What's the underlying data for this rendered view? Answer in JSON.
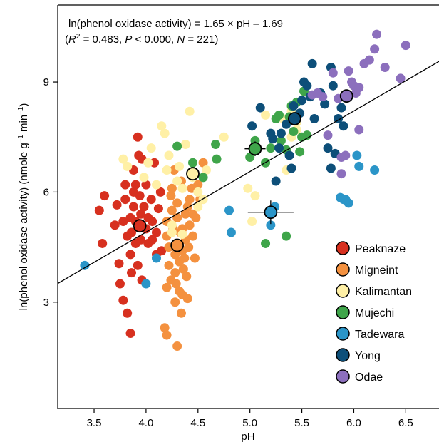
{
  "chart_data": {
    "type": "scatter",
    "equation_line1": "ln(phenol oxidase activity) = 1.65 × pH – 1.69",
    "equation_line2": {
      "open": "(",
      "r_symbol": "R",
      "r_sup": "2",
      "r_value": " = 0.483, ",
      "p_symbol": "P",
      "p_value": " < 0.000, ",
      "n_symbol": "N",
      "n_value": " = 221)"
    },
    "xlabel": "pH",
    "ylabel": {
      "main": "ln(phenol oxidase activity) (nmole  g",
      "sup1": "–1",
      "mid": " min",
      "sup2": "–1",
      "end": ")"
    },
    "xlim": [
      3.15,
      6.82
    ],
    "ylim": [
      0.1,
      11.1
    ],
    "xticks": [
      "3.5",
      "4.0",
      "4.5",
      "5.0",
      "5.5",
      "6.0",
      "6.5"
    ],
    "yticks": [
      "3",
      "6",
      "9"
    ],
    "regression": {
      "slope": 1.65,
      "intercept": -1.69
    },
    "legend_position": "bottom-right",
    "series": [
      {
        "name": "Peaknaze",
        "color": "#d7301f",
        "points": [
          [
            3.55,
            5.5
          ],
          [
            3.6,
            5.9
          ],
          [
            3.7,
            5.1
          ],
          [
            3.72,
            5.65
          ],
          [
            3.75,
            3.5
          ],
          [
            3.78,
            3.05
          ],
          [
            3.8,
            6.2
          ],
          [
            3.8,
            5.8
          ],
          [
            3.82,
            4.8
          ],
          [
            3.82,
            2.7
          ],
          [
            3.85,
            2.15
          ],
          [
            3.85,
            5.3
          ],
          [
            3.85,
            4.3
          ],
          [
            3.86,
            4.9
          ],
          [
            3.88,
            6.0
          ],
          [
            3.88,
            5.6
          ],
          [
            3.9,
            6.2
          ],
          [
            3.9,
            5.2
          ],
          [
            3.9,
            4.6
          ],
          [
            3.92,
            4.0
          ],
          [
            3.92,
            7.5
          ],
          [
            3.93,
            7.0
          ],
          [
            3.94,
            5.9
          ],
          [
            3.95,
            5.4
          ],
          [
            3.95,
            4.7
          ],
          [
            3.96,
            3.6
          ],
          [
            3.98,
            5.6
          ],
          [
            4.0,
            6.2
          ],
          [
            4.0,
            5.0
          ],
          [
            4.02,
            4.6
          ],
          [
            4.05,
            5.8
          ],
          [
            4.06,
            5.2
          ],
          [
            4.08,
            6.8
          ],
          [
            4.1,
            4.9
          ],
          [
            4.1,
            4.3
          ],
          [
            4.12,
            5.55
          ],
          [
            4.14,
            6.0
          ],
          [
            4.15,
            4.4
          ],
          [
            3.58,
            4.6
          ],
          [
            3.74,
            4.05
          ],
          [
            3.78,
            5.2
          ],
          [
            3.86,
            3.8
          ],
          [
            3.88,
            6.6
          ],
          [
            3.96,
            6.9
          ],
          [
            4.02,
            5.3
          ],
          [
            4.06,
            4.7
          ]
        ]
      },
      {
        "name": "Migneint",
        "color": "#f4913f",
        "points": [
          [
            4.18,
            2.3
          ],
          [
            4.2,
            5.2
          ],
          [
            4.2,
            4.8
          ],
          [
            4.22,
            4.5
          ],
          [
            4.22,
            4.0
          ],
          [
            4.24,
            3.6
          ],
          [
            4.25,
            5.5
          ],
          [
            4.25,
            6.1
          ],
          [
            4.26,
            5.0
          ],
          [
            4.28,
            4.3
          ],
          [
            4.28,
            3.8
          ],
          [
            4.3,
            5.7
          ],
          [
            4.3,
            5.3
          ],
          [
            4.3,
            4.6
          ],
          [
            4.32,
            4.1
          ],
          [
            4.32,
            3.3
          ],
          [
            4.34,
            6.3
          ],
          [
            4.35,
            5.0
          ],
          [
            4.35,
            4.4
          ],
          [
            4.36,
            3.9
          ],
          [
            4.38,
            5.4
          ],
          [
            4.38,
            4.7
          ],
          [
            4.4,
            5.6
          ],
          [
            4.4,
            3.1
          ],
          [
            4.42,
            5.8
          ],
          [
            4.42,
            5.1
          ],
          [
            4.44,
            6.1
          ],
          [
            4.45,
            4.8
          ],
          [
            4.45,
            5.4
          ],
          [
            4.48,
            5.3
          ],
          [
            4.5,
            6.2
          ],
          [
            4.52,
            5.8
          ],
          [
            4.55,
            6.8
          ],
          [
            4.35,
            3.2
          ],
          [
            4.3,
            1.8
          ],
          [
            4.2,
            2.1
          ],
          [
            4.27,
            6.6
          ],
          [
            4.33,
            4.9
          ],
          [
            4.37,
            4.2
          ],
          [
            4.24,
            5.9
          ],
          [
            4.29,
            3.5
          ],
          [
            4.39,
            3.7
          ],
          [
            4.28,
            3.0
          ],
          [
            4.34,
            2.7
          ],
          [
            4.2,
            3.4
          ],
          [
            4.41,
            4.5
          ],
          [
            4.47,
            4.2
          ]
        ]
      },
      {
        "name": "Kalimantan",
        "color": "#fff0a6",
        "points": [
          [
            3.78,
            6.9
          ],
          [
            3.82,
            6.7
          ],
          [
            3.98,
            6.4
          ],
          [
            4.02,
            6.8
          ],
          [
            4.05,
            7.2
          ],
          [
            4.1,
            6.2
          ],
          [
            4.15,
            7.8
          ],
          [
            4.18,
            7.6
          ],
          [
            4.2,
            6.6
          ],
          [
            4.22,
            7.0
          ],
          [
            4.25,
            5.1
          ],
          [
            4.3,
            6.3
          ],
          [
            4.35,
            6.1
          ],
          [
            4.38,
            7.3
          ],
          [
            4.42,
            8.2
          ],
          [
            4.45,
            6.4
          ],
          [
            4.5,
            6.0
          ],
          [
            4.55,
            5.8
          ],
          [
            4.5,
            5.6
          ],
          [
            4.75,
            7.5
          ],
          [
            4.98,
            6.1
          ],
          [
            5.05,
            5.9
          ],
          [
            5.35,
            6.6
          ],
          [
            5.4,
            7.5
          ],
          [
            5.45,
            7.9
          ],
          [
            5.3,
            7.6
          ],
          [
            5.15,
            8.1
          ],
          [
            5.4,
            8.2
          ],
          [
            5.45,
            7.7
          ],
          [
            4.25,
            4.9
          ],
          [
            4.35,
            4.85
          ],
          [
            4.32,
            6.7
          ],
          [
            4.58,
            6.6
          ],
          [
            5.02,
            5.2
          ],
          [
            5.32,
            8.0
          ]
        ]
      },
      {
        "name": "Mujechi",
        "color": "#3fa54a",
        "points": [
          [
            4.3,
            7.25
          ],
          [
            4.45,
            6.8
          ],
          [
            4.55,
            6.4
          ],
          [
            4.67,
            7.3
          ],
          [
            4.68,
            6.9
          ],
          [
            5.0,
            6.95
          ],
          [
            5.05,
            7.4
          ],
          [
            5.15,
            6.8
          ],
          [
            5.2,
            7.2
          ],
          [
            5.25,
            8.0
          ],
          [
            5.3,
            7.4
          ],
          [
            5.35,
            7.15
          ],
          [
            5.38,
            8.05
          ],
          [
            5.4,
            8.35
          ],
          [
            5.45,
            8.45
          ],
          [
            5.48,
            7.1
          ],
          [
            5.5,
            7.5
          ],
          [
            5.52,
            8.75
          ],
          [
            5.55,
            7.55
          ],
          [
            5.15,
            4.6
          ],
          [
            5.35,
            4.8
          ],
          [
            5.28,
            8.1
          ],
          [
            5.42,
            7.65
          ]
        ]
      },
      {
        "name": "Tadewara",
        "color": "#2b95c8",
        "points": [
          [
            3.41,
            4.0
          ],
          [
            4.0,
            3.5
          ],
          [
            4.1,
            4.2
          ],
          [
            4.8,
            5.5
          ],
          [
            4.82,
            4.9
          ],
          [
            5.2,
            5.1
          ],
          [
            5.24,
            5.6
          ],
          [
            5.9,
            5.8
          ],
          [
            5.95,
            5.7
          ],
          [
            6.03,
            7.0
          ],
          [
            6.05,
            6.7
          ],
          [
            6.2,
            6.6
          ],
          [
            5.92,
            5.8
          ],
          [
            5.87,
            5.85
          ]
        ]
      },
      {
        "name": "Yong",
        "color": "#0d4f79",
        "points": [
          [
            5.02,
            7.8
          ],
          [
            5.1,
            8.3
          ],
          [
            5.2,
            7.6
          ],
          [
            5.22,
            7.45
          ],
          [
            5.25,
            6.3
          ],
          [
            5.28,
            7.2
          ],
          [
            5.3,
            7.6
          ],
          [
            5.35,
            7.85
          ],
          [
            5.38,
            7.0
          ],
          [
            5.4,
            6.65
          ],
          [
            5.42,
            8.35
          ],
          [
            5.45,
            8.0
          ],
          [
            5.48,
            8.15
          ],
          [
            5.5,
            8.5
          ],
          [
            5.52,
            9.0
          ],
          [
            5.55,
            8.9
          ],
          [
            5.58,
            8.6
          ],
          [
            5.6,
            9.5
          ],
          [
            5.62,
            8.0
          ],
          [
            5.68,
            8.7
          ],
          [
            5.72,
            8.4
          ],
          [
            5.75,
            7.2
          ],
          [
            5.78,
            9.4
          ],
          [
            5.8,
            8.9
          ],
          [
            5.82,
            7.05
          ],
          [
            5.85,
            8.0
          ],
          [
            5.88,
            8.3
          ],
          [
            5.9,
            7.8
          ],
          [
            5.95,
            8.6
          ],
          [
            5.78,
            6.65
          ]
        ]
      },
      {
        "name": "Odae",
        "color": "#8c6fbd",
        "points": [
          [
            5.6,
            8.65
          ],
          [
            5.7,
            8.6
          ],
          [
            5.75,
            7.55
          ],
          [
            5.8,
            9.25
          ],
          [
            5.85,
            8.55
          ],
          [
            5.88,
            6.5
          ],
          [
            5.92,
            7.0
          ],
          [
            5.95,
            9.3
          ],
          [
            6.0,
            8.9
          ],
          [
            6.02,
            8.7
          ],
          [
            6.05,
            7.7
          ],
          [
            6.05,
            8.85
          ],
          [
            6.1,
            9.5
          ],
          [
            6.15,
            9.6
          ],
          [
            6.2,
            9.9
          ],
          [
            6.22,
            10.3
          ],
          [
            6.3,
            9.4
          ],
          [
            6.45,
            9.1
          ],
          [
            6.5,
            10.0
          ],
          [
            5.98,
            9.0
          ],
          [
            5.65,
            8.7
          ],
          [
            5.88,
            6.95
          ]
        ]
      }
    ],
    "means": [
      {
        "series": "Peaknaze",
        "x": 3.94,
        "y": 5.08,
        "xerr": 0.04,
        "yerr": 0.18
      },
      {
        "series": "Migneint",
        "x": 4.3,
        "y": 4.55,
        "xerr": 0.03,
        "yerr": 0.14
      },
      {
        "series": "Kalimantan",
        "x": 4.45,
        "y": 6.5,
        "xerr": 0.06,
        "yerr": 0.14
      },
      {
        "series": "Mujechi",
        "x": 5.05,
        "y": 7.18,
        "xerr": 0.1,
        "yerr": 0.2
      },
      {
        "series": "Tadewara",
        "x": 5.2,
        "y": 5.45,
        "xerr": 0.22,
        "yerr": 0.32
      },
      {
        "series": "Yong",
        "x": 5.43,
        "y": 8.0,
        "xerr": 0.06,
        "yerr": 0.14
      },
      {
        "series": "Odae",
        "x": 5.93,
        "y": 8.62,
        "xerr": 0.06,
        "yerr": 0.16
      }
    ]
  }
}
